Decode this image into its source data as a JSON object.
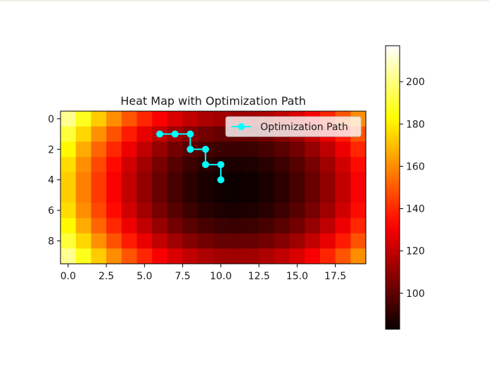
{
  "chart_data": {
    "type": "heatmap",
    "title": "Heat Map with Optimization Path",
    "xlabel": "",
    "ylabel": "",
    "colormap": "hot",
    "color_range": [
      83,
      217
    ],
    "rows": 10,
    "cols": 20,
    "field": {
      "formula": "83 + 134 * ( ((col - 11)/11)^2 * 0.67 + ((row - 4.5)/5.5)^2 * 0.33 )",
      "min_at": {
        "row": 4.5,
        "col": 11
      },
      "value_range": [
        83,
        217
      ]
    },
    "x_ticks": [
      "0.0",
      "2.5",
      "5.0",
      "7.5",
      "10.0",
      "12.5",
      "15.0",
      "17.5"
    ],
    "x_tick_values": [
      0,
      2.5,
      5,
      7.5,
      10,
      12.5,
      15,
      17.5
    ],
    "y_ticks": [
      "0",
      "2",
      "4",
      "6",
      "8"
    ],
    "y_tick_values": [
      0,
      2,
      4,
      6,
      8
    ],
    "xlim": [
      -0.5,
      19.5
    ],
    "ylim": [
      9.5,
      -0.5
    ],
    "series": [
      {
        "name": "Optimization Path",
        "type": "line",
        "color": "#00ffff",
        "x": [
          6,
          7,
          8,
          8,
          9,
          9,
          10,
          10
        ],
        "y": [
          1,
          1,
          1,
          2,
          2,
          3,
          3,
          4
        ]
      }
    ],
    "legend": {
      "position": "top-right",
      "label": "Optimization Path"
    },
    "colorbar": {
      "ticks": [
        "100",
        "120",
        "140",
        "160",
        "180",
        "200"
      ],
      "tick_values": [
        100,
        120,
        140,
        160,
        180,
        200
      ]
    }
  }
}
